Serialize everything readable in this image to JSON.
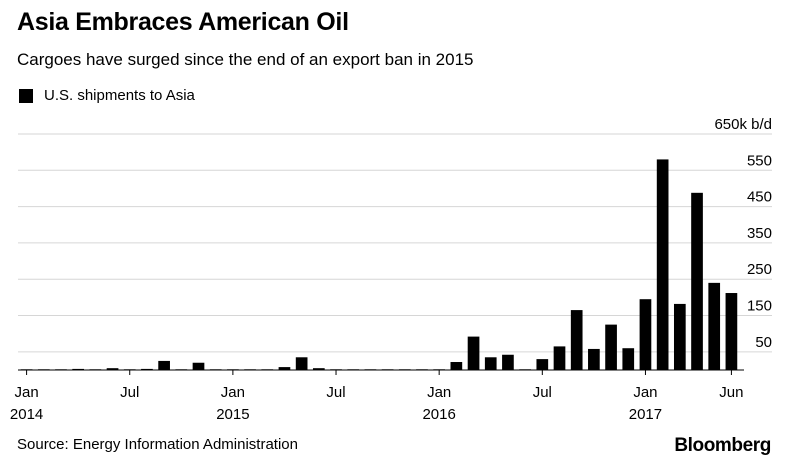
{
  "header": {
    "title": "Asia Embraces American Oil",
    "subtitle": "Cargoes have surged since the end of an export ban in 2015"
  },
  "legend": {
    "label": "U.S. shipments to Asia",
    "color": "#000000"
  },
  "footer": {
    "source": "Source: Energy Information Administration",
    "brand": "Bloomberg"
  },
  "chart_data": {
    "type": "bar",
    "title": "Asia Embraces American Oil",
    "subtitle": "Cargoes have surged since the end of an export ban in 2015",
    "xlabel": "",
    "ylabel": "",
    "y_unit_label": "650k b/d",
    "ylim": [
      0,
      650
    ],
    "yticks": [
      50,
      150,
      250,
      350,
      450,
      550
    ],
    "grid": true,
    "legend_position": "top-left",
    "categories": [
      "2014-01",
      "2014-02",
      "2014-03",
      "2014-04",
      "2014-05",
      "2014-06",
      "2014-07",
      "2014-08",
      "2014-09",
      "2014-10",
      "2014-11",
      "2014-12",
      "2015-01",
      "2015-02",
      "2015-03",
      "2015-04",
      "2015-05",
      "2015-06",
      "2015-07",
      "2015-08",
      "2015-09",
      "2015-10",
      "2015-11",
      "2015-12",
      "2016-01",
      "2016-02",
      "2016-03",
      "2016-04",
      "2016-05",
      "2016-06",
      "2016-07",
      "2016-08",
      "2016-09",
      "2016-10",
      "2016-11",
      "2016-12",
      "2017-01",
      "2017-02",
      "2017-03",
      "2017-04",
      "2017-05",
      "2017-06"
    ],
    "series": [
      {
        "name": "U.S. shipments to Asia",
        "color": "#000000",
        "values": [
          2,
          2,
          2,
          3,
          2,
          5,
          2,
          3,
          25,
          2,
          20,
          2,
          2,
          2,
          2,
          8,
          35,
          5,
          2,
          2,
          2,
          2,
          2,
          2,
          2,
          22,
          92,
          35,
          42,
          2,
          30,
          65,
          165,
          58,
          125,
          60,
          195,
          580,
          182,
          488,
          240,
          212
        ]
      }
    ],
    "x_tick_labels": [
      {
        "label": "Jan",
        "year": "2014",
        "month_index": 0
      },
      {
        "label": "Jul",
        "year": "",
        "month_index": 6
      },
      {
        "label": "Jan",
        "year": "2015",
        "month_index": 12
      },
      {
        "label": "Jul",
        "year": "",
        "month_index": 18
      },
      {
        "label": "Jan",
        "year": "2016",
        "month_index": 24
      },
      {
        "label": "Jul",
        "year": "",
        "month_index": 30
      },
      {
        "label": "Jan",
        "year": "2017",
        "month_index": 36
      },
      {
        "label": "Jun",
        "year": "",
        "month_index": 41
      }
    ]
  }
}
